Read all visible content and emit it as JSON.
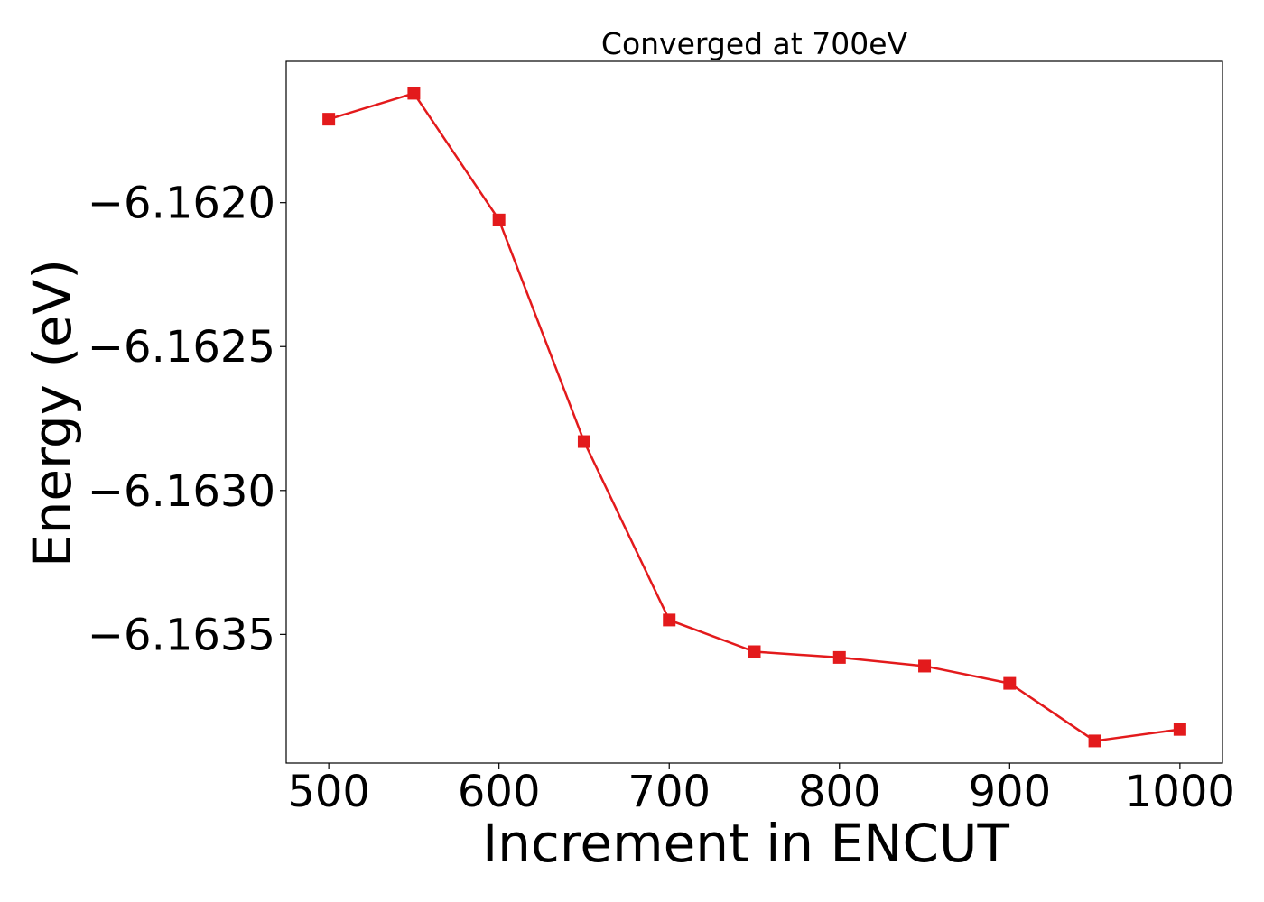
{
  "chart_data": {
    "type": "line",
    "title": "Converged at 700eV",
    "xlabel": "Increment in ENCUT",
    "ylabel": "Energy (eV)",
    "x": [
      500,
      550,
      600,
      650,
      700,
      750,
      800,
      850,
      900,
      950,
      1000
    ],
    "series": [
      {
        "values": [
          -6.16171,
          -6.16162,
          -6.16206,
          -6.16283,
          -6.16345,
          -6.16356,
          -6.16358,
          -6.16361,
          -6.16367,
          -6.16387,
          -6.16383
        ],
        "color": "#e31a1c",
        "marker": "square"
      }
    ],
    "xlim": [
      475,
      1025
    ],
    "ylim": [
      -6.163947,
      -6.161509
    ],
    "xticks": [
      500,
      600,
      700,
      800,
      900,
      1000
    ],
    "xtick_labels": [
      "500",
      "600",
      "700",
      "800",
      "900",
      "1000"
    ],
    "yticks": [
      -6.162,
      -6.1625,
      -6.163,
      -6.1635
    ],
    "ytick_labels": [
      "−6.1620",
      "−6.1625",
      "−6.1630",
      "−6.1635"
    ],
    "grid": false,
    "legend": "none"
  }
}
